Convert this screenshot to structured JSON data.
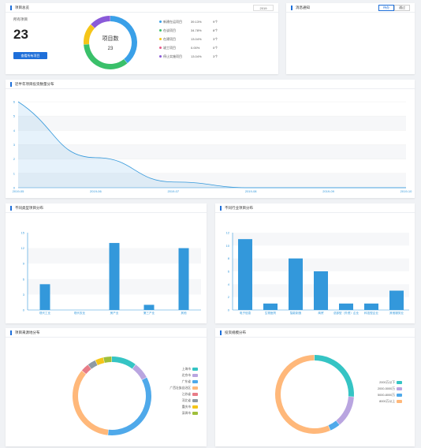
{
  "overview": {
    "title": "项目总览",
    "year": "2019",
    "total_label": "所有项目",
    "total_value": "23",
    "view_all_button": "查看所有项目",
    "donut_title": "项目数",
    "donut_value": "23",
    "legend": [
      {
        "label": "新建在运项目",
        "pct": "39.13%",
        "count": "9个",
        "color": "#3aa0e8"
      },
      {
        "label": "在谈项目",
        "pct": "34.78%",
        "count": "8个",
        "color": "#3ac06a"
      },
      {
        "label": "在建项目",
        "pct": "13.04%",
        "count": "3个",
        "color": "#f5c518"
      },
      {
        "label": "竣工项目",
        "pct": "0.00%",
        "count": "0个",
        "color": "#e85c8a"
      },
      {
        "label": "停止实施项目",
        "pct": "13.04%",
        "count": "3个",
        "color": "#8a5ad9"
      }
    ]
  },
  "messages": {
    "title": "消息通知",
    "tabs": [
      "待办",
      "通过"
    ]
  },
  "colors": {
    "accent": "#1e6fd9",
    "bar": "#3398db"
  },
  "chart_data": [
    {
      "type": "area",
      "title": "近半年项目投资数量分布",
      "x": [
        "2019-05",
        "2019-06",
        "2019-07",
        "2019-08",
        "2019-09",
        "2019-10"
      ],
      "values": [
        6,
        2.1,
        0.4,
        0,
        0,
        0
      ],
      "ylim": [
        0,
        6
      ],
      "yticks": [
        0,
        1,
        2,
        3,
        4,
        5,
        6
      ]
    },
    {
      "type": "bar",
      "title": "不同类型项目分布",
      "categories": [
        "现代工业",
        "现代农业",
        "房产业",
        "第三产业",
        "其他"
      ],
      "values": [
        5,
        0,
        13,
        1,
        12
      ],
      "ylim": [
        0,
        15
      ],
      "yticks": [
        0,
        3,
        6,
        9,
        12,
        15
      ]
    },
    {
      "type": "bar",
      "title": "不同行业项目分布",
      "categories": [
        "电子信息",
        "生物医药",
        "智能制造",
        "商贸",
        "总部型（外资）企业",
        "科技型企业",
        "其他服务业"
      ],
      "values": [
        11,
        1,
        8,
        6,
        1,
        1,
        3
      ],
      "ylim": [
        0,
        12
      ],
      "yticks": [
        0,
        2,
        4,
        6,
        8,
        10,
        12
      ]
    },
    {
      "type": "pie",
      "title": "项目来源地分布",
      "labels": [
        "上海市",
        "北京市",
        "广东省",
        "广西壮族自治区",
        "江苏省",
        "河北省",
        "重庆市",
        "深圳市"
      ],
      "values": [
        3,
        2,
        10,
        10,
        1,
        1,
        1,
        1
      ],
      "colors": [
        "#35c4c4",
        "#b9a5e0",
        "#4fa9ea",
        "#ffb87a",
        "#e87c87",
        "#8f9aa3",
        "#f5c518",
        "#9fbf3b"
      ]
    },
    {
      "type": "pie",
      "title": "投资规模分布",
      "labels": [
        "2000万以下",
        "2000-5000万",
        "5000-8000万",
        "8000万以上"
      ],
      "values": [
        6,
        3,
        1,
        13
      ],
      "colors": [
        "#35c4c4",
        "#b9a5e0",
        "#4fa9ea",
        "#ffb87a"
      ]
    }
  ]
}
